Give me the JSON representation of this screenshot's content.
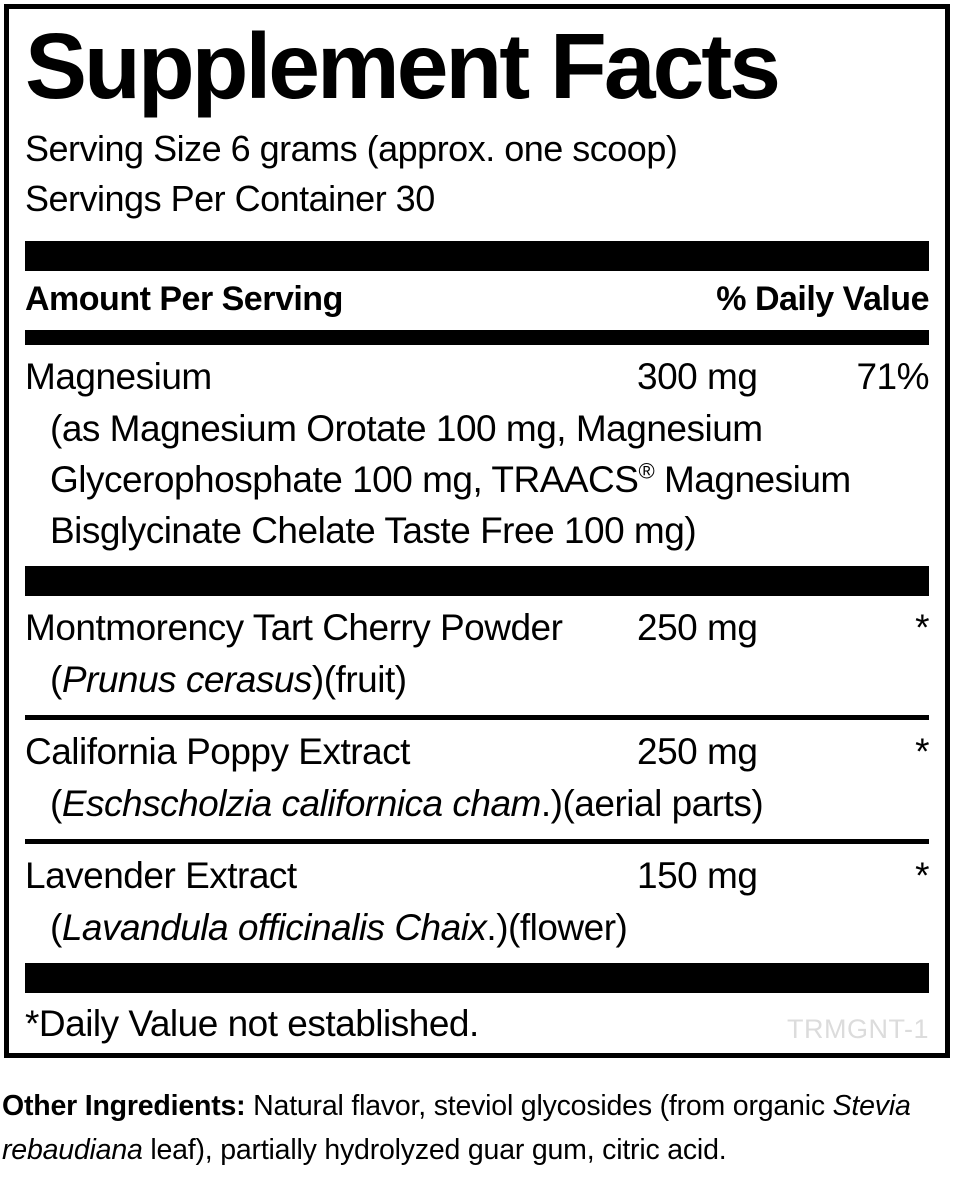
{
  "colors": {
    "text": "#000000",
    "background": "#ffffff",
    "separator_bars": "#000000",
    "product_code_text": "#dcdcdc"
  },
  "panel": {
    "title": "Supplement Facts",
    "serving_size": "Serving Size 6 grams (approx. one scoop)",
    "servings_per_container": "Servings Per Container 30",
    "column_headers": {
      "amount_per_serving": "Amount Per Serving",
      "percent_daily_value": "% Daily Value"
    },
    "rows": [
      {
        "name": "Magnesium",
        "amount": "300 mg",
        "daily_value": "71%",
        "desc_line1": "(as Magnesium Orotate 100 mg, Magnesium",
        "desc_line2_pre": "Glycerophosphate 100 mg, TRAACS",
        "desc_line2_reg_mark": "®",
        "desc_line2_post": "Magnesium",
        "desc_line3": "Bisglycinate Chelate Taste Free 100 mg)"
      },
      {
        "name": "Montmorency Tart Cherry Powder",
        "amount": "250 mg",
        "daily_value": "*",
        "sub_open": "(",
        "sub_italic": "Prunus cerasus",
        "sub_rest": ")(fruit)"
      },
      {
        "name": "California Poppy Extract",
        "amount": "250 mg",
        "daily_value": "*",
        "sub_open": "(",
        "sub_italic": "Eschscholzia californica cham",
        "sub_rest": ".)(aerial parts)"
      },
      {
        "name": "Lavender Extract",
        "amount": "150 mg",
        "daily_value": "*",
        "sub_open": "(",
        "sub_italic": "Lavandula officinalis Chaix",
        "sub_rest": ".)(flower)"
      }
    ],
    "footnote": "*Daily Value not established.",
    "product_code": "TRMGNT-1"
  },
  "other_ingredients": {
    "label": "Other Ingredients:",
    "line1_text": "Natural flavor, steviol glycosides (from organic",
    "line2_italic": "Stevia rebaudiana",
    "line2_text": "leaf), partially hydrolyzed guar gum, citric acid."
  }
}
